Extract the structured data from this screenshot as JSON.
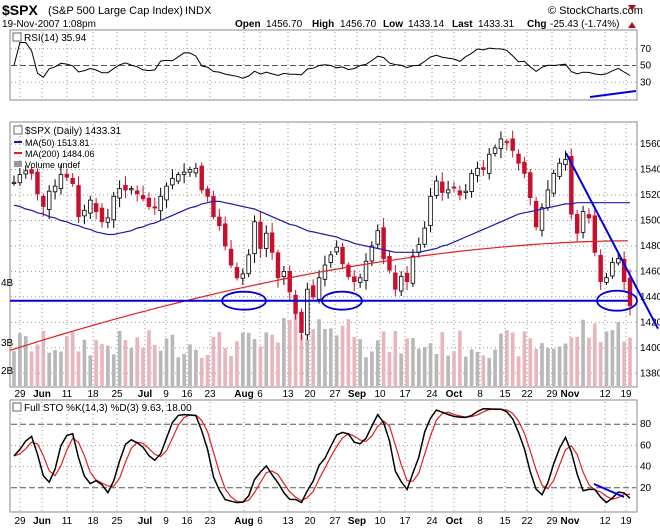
{
  "header": {
    "symbol": "$SPX",
    "name": "(S&P 500 Large Cap Index)",
    "exchange": "INDX",
    "date": "19-Nov-2007 1:08pm",
    "watermark": "© StockCharts.com",
    "open_label": "Open",
    "open": "1456.70",
    "high_label": "High",
    "high": "1456.70",
    "low_label": "Low",
    "low": "1433.14",
    "last_label": "Last",
    "last": "1433.31",
    "chg_label": "Chg",
    "chg": "-25.43 (-1.74%)"
  },
  "rsi": {
    "label": "RSI(14) 35.94",
    "levels": [
      "70",
      "50",
      "30"
    ]
  },
  "price": {
    "title": "$SPX (Daily) 1433.31",
    "ma50_label": "MA(50) 1513.81",
    "ma200_label": "MA(200) 1484.06",
    "volume_label": "Volume undef",
    "y_ticks": [
      "1560",
      "1540",
      "1520",
      "1500",
      "1480",
      "1460",
      "1440",
      "1420",
      "1400",
      "1380"
    ],
    "vol_ticks": [
      "4B",
      "3B",
      "2B"
    ]
  },
  "sto": {
    "label": "Full STO %K(14,3) %D(3) 9.63, 18.00",
    "levels": [
      "80",
      "60",
      "40",
      "20"
    ]
  },
  "x_ticks": [
    "29",
    "Jun",
    "11",
    "18",
    "25",
    "Jul",
    "9",
    "16",
    "23",
    "Aug",
    "6",
    "13",
    "20",
    "27",
    "Sep",
    "10",
    "17",
    "24",
    "Oct",
    "8",
    "15",
    "22",
    "29",
    "Nov",
    "12",
    "19"
  ],
  "colors": {
    "up": "#000000",
    "down": "#c8102e",
    "ma50": "#1a1aa6",
    "ma200": "#e02020",
    "annotation": "#0000dd",
    "grid": "#9a9a9a",
    "vol_up": "#b8b8b8",
    "vol_down": "#e9b4bc"
  },
  "chart_data": {
    "type": "candlestick",
    "title": "$SPX (Daily) 1433.31",
    "ylim": [
      1370,
      1575
    ],
    "closes": [
      1530,
      1536,
      1539,
      1537,
      1521,
      1511,
      1523,
      1527,
      1536,
      1534,
      1529,
      1503,
      1508,
      1516,
      1507,
      1499,
      1502,
      1519,
      1525,
      1524,
      1525,
      1521,
      1517,
      1511,
      1510,
      1519,
      1527,
      1533,
      1536,
      1538,
      1540,
      1541,
      1524,
      1519,
      1503,
      1496,
      1480,
      1465,
      1455,
      1458,
      1473,
      1499,
      1478,
      1490,
      1475,
      1455,
      1460,
      1444,
      1427,
      1412,
      1446,
      1440,
      1455,
      1465,
      1473,
      1479,
      1466,
      1456,
      1452,
      1455,
      1468,
      1480,
      1492,
      1470,
      1461,
      1446,
      1456,
      1452,
      1472,
      1481,
      1494,
      1519,
      1531,
      1522,
      1524,
      1526,
      1520,
      1523,
      1537,
      1541,
      1540,
      1552,
      1557,
      1564,
      1562,
      1555,
      1545,
      1537,
      1518,
      1495,
      1510,
      1524,
      1537,
      1545,
      1548,
      1505,
      1490,
      1507,
      1502,
      1475,
      1452,
      1455,
      1467,
      1470,
      1452,
      1433
    ],
    "ma50": [
      1512,
      1511,
      1509,
      1508,
      1506,
      1505,
      1503,
      1502,
      1500,
      1499,
      1497,
      1496,
      1494,
      1493,
      1491,
      1490,
      1489,
      1489,
      1490,
      1491,
      1492,
      1494,
      1495,
      1497,
      1498,
      1500,
      1502,
      1504,
      1506,
      1508,
      1510,
      1511,
      1513,
      1514,
      1515,
      1515,
      1514,
      1513,
      1512,
      1511,
      1510,
      1509,
      1507,
      1505,
      1503,
      1501,
      1499,
      1497,
      1496,
      1494,
      1492,
      1491,
      1490,
      1489,
      1488,
      1487,
      1485,
      1484,
      1482,
      1481,
      1480,
      1479,
      1478,
      1477,
      1476,
      1475,
      1475,
      1475,
      1475,
      1475,
      1476,
      1477,
      1478,
      1480,
      1481,
      1483,
      1485,
      1487,
      1489,
      1491,
      1493,
      1495,
      1497,
      1499,
      1501,
      1503,
      1505,
      1506,
      1507,
      1508,
      1509,
      1510,
      1511,
      1512,
      1513,
      1513,
      1514,
      1514,
      1514,
      1514,
      1514,
      1514,
      1514,
      1514,
      1514,
      1514
    ],
    "ma200_range": [
      1398,
      1484.06
    ],
    "rsi_last": 35.94,
    "sto_k_last": 9.63,
    "sto_d_last": 18.0,
    "support_level": 1437
  }
}
